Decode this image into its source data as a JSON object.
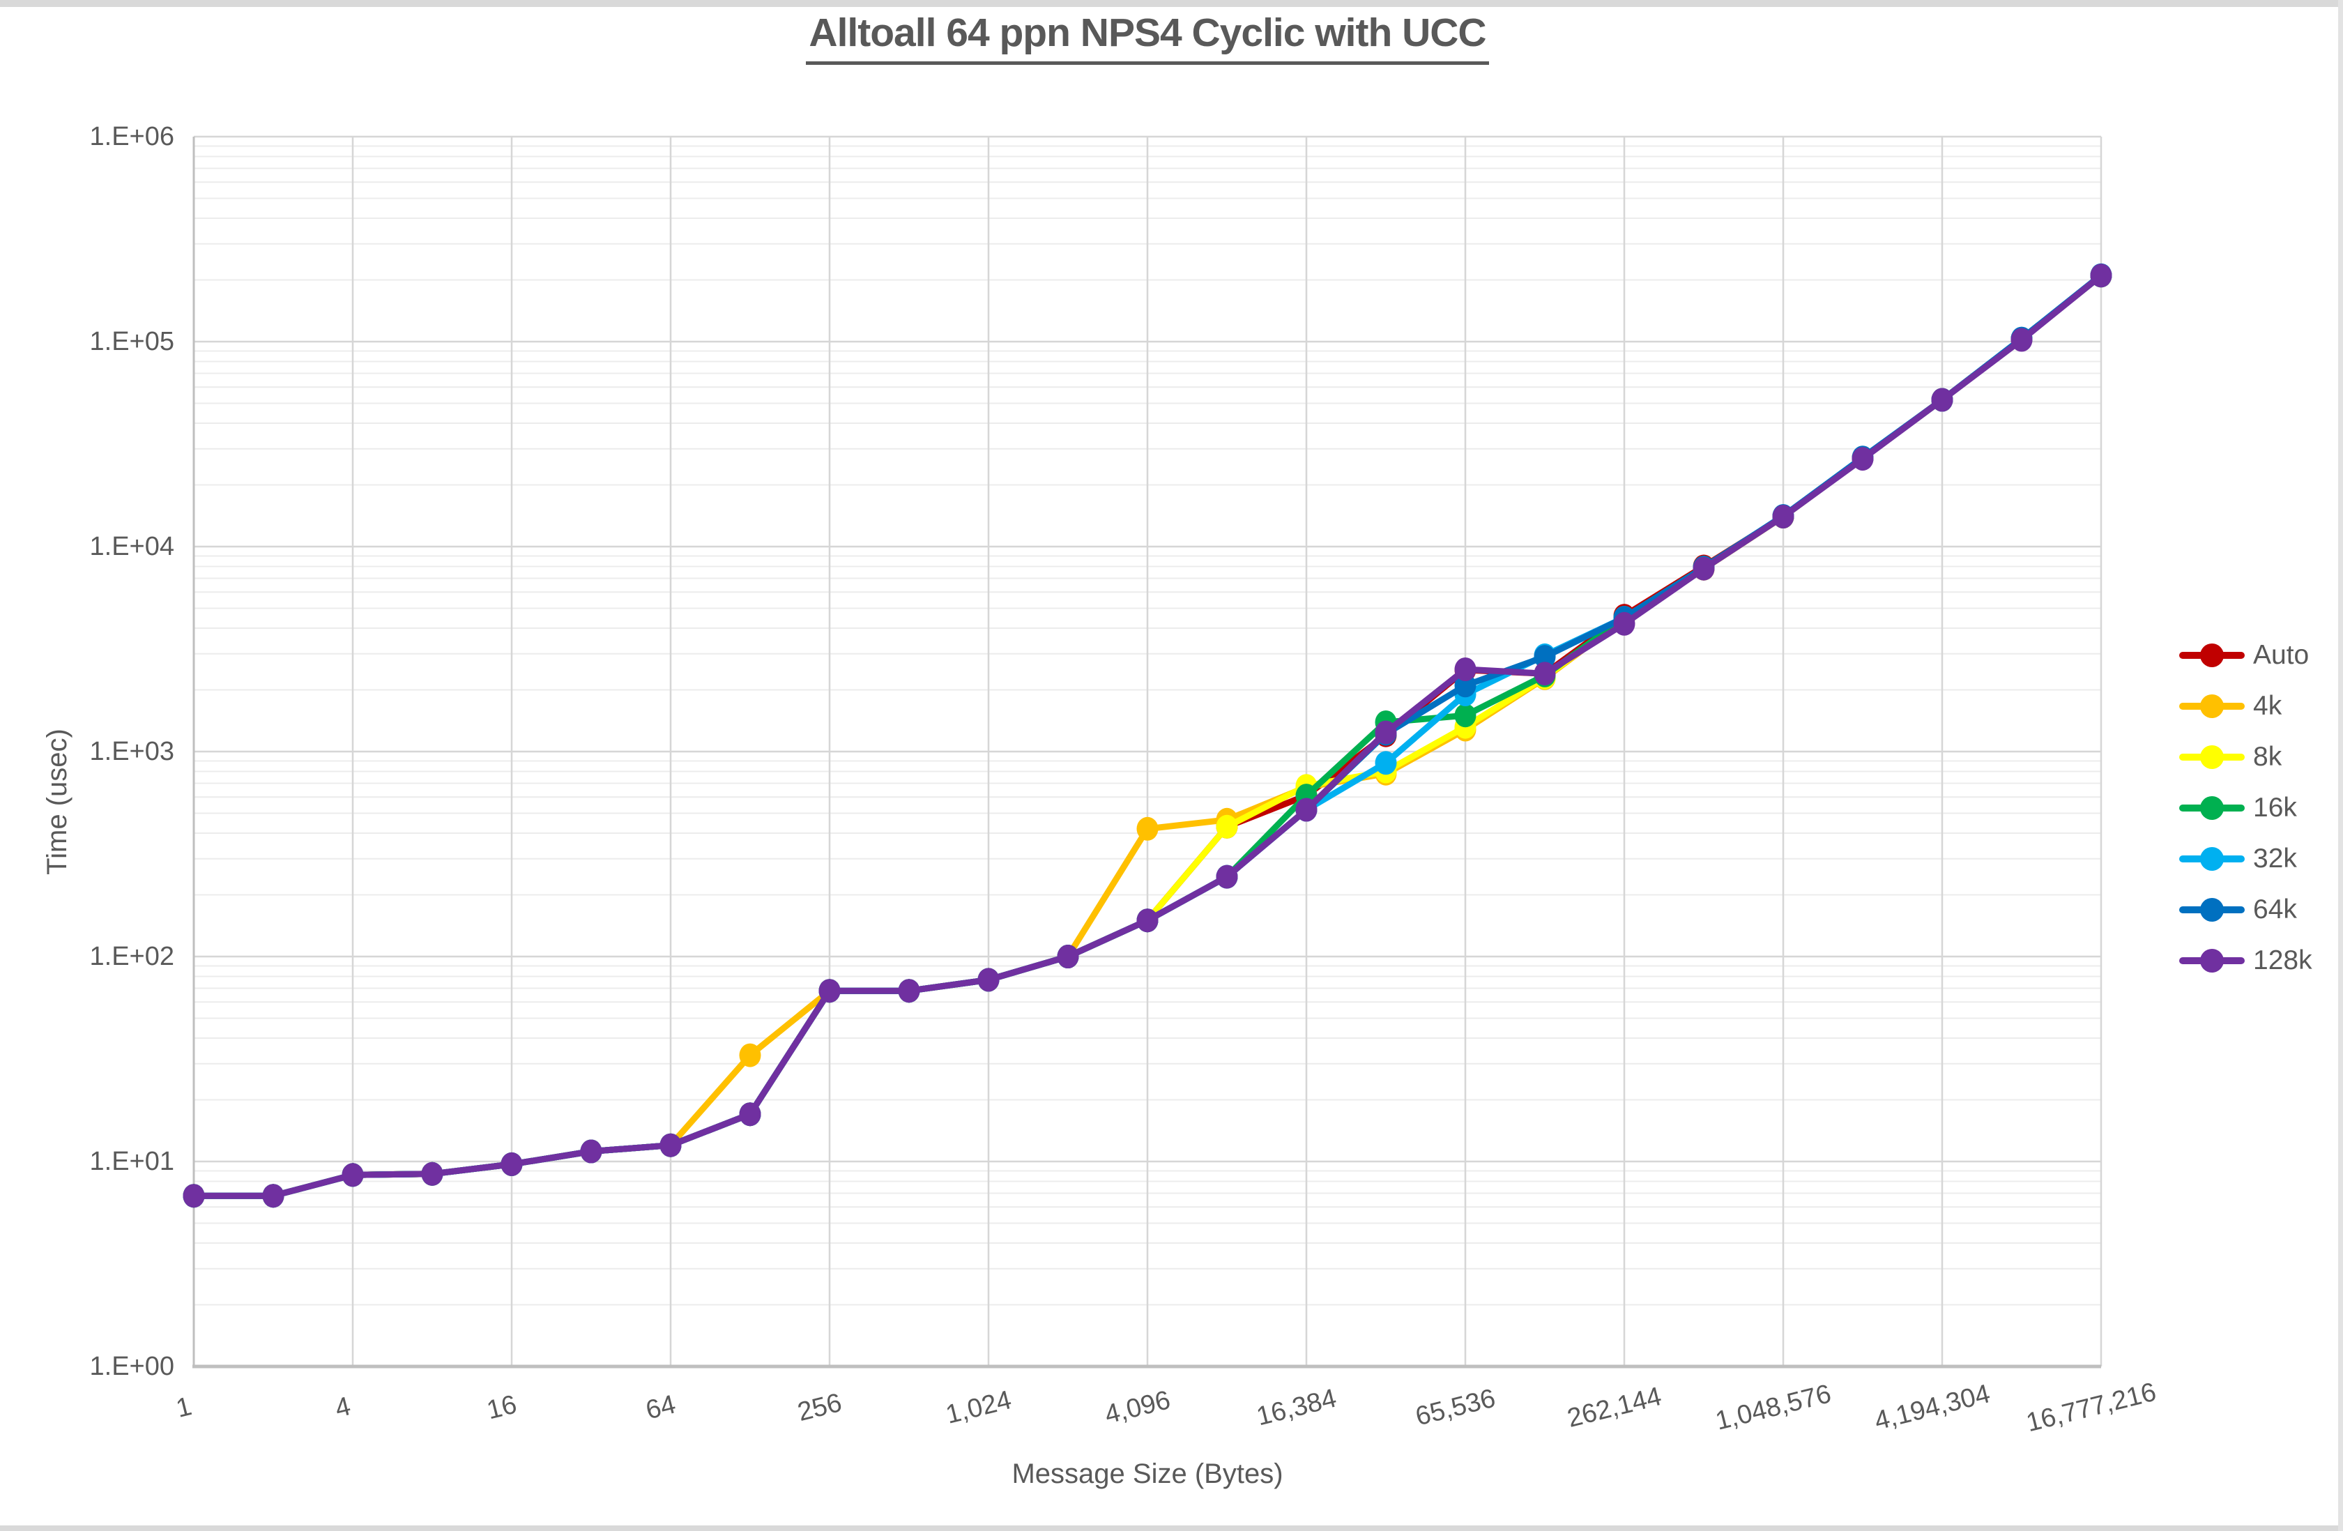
{
  "chart": {
    "text_color": "#595959",
    "major_gridline_color": "#d6d6d6",
    "minor_gridline_color": "#ececec",
    "axis_line_color": "#bfbfbf",
    "background_color": "#ffffff"
  },
  "chart_data": {
    "type": "line",
    "title": "Alltoall 64 ppn NPS4 Cyclic with UCC",
    "xlabel": "Message Size (Bytes)",
    "ylabel": "Time (usec)",
    "x_scale": "log2",
    "y_scale": "log10",
    "xlim": [
      1,
      16777216
    ],
    "ylim": [
      1,
      1000000
    ],
    "grid": true,
    "legend_position": "right",
    "x": [
      1,
      2,
      4,
      8,
      16,
      32,
      64,
      128,
      256,
      512,
      1024,
      2048,
      4096,
      8192,
      16384,
      32768,
      65536,
      131072,
      262144,
      524288,
      1048576,
      2097152,
      4194304,
      8388608,
      16777216
    ],
    "x_tick_labels": [
      "1",
      "4",
      "16",
      "64",
      "256",
      "1,024",
      "4,096",
      "16,384",
      "65,536",
      "262,144",
      "1,048,576",
      "4,194,304",
      "16,777,216"
    ],
    "y_tick_labels": [
      "1.E+00",
      "1.E+01",
      "1.E+02",
      "1.E+03",
      "1.E+04",
      "1.E+05",
      "1.E+06"
    ],
    "series": [
      {
        "name": "Auto",
        "color": "#C00000",
        "values": [
          6.8,
          6.8,
          8.6,
          8.7,
          9.7,
          11.2,
          12,
          17,
          68,
          68,
          77,
          100,
          150,
          430,
          610,
          1200,
          2500,
          2400,
          4600,
          8000,
          14000,
          27000,
          52000,
          103000,
          210000
        ]
      },
      {
        "name": "4k",
        "color": "#FFC000",
        "values": [
          6.8,
          6.8,
          8.6,
          8.7,
          9.7,
          11.2,
          12,
          33,
          68,
          68,
          77,
          100,
          420,
          465,
          670,
          780,
          1280,
          2280,
          4450,
          7800,
          14000,
          27000,
          52000,
          103000,
          210000
        ]
      },
      {
        "name": "8k",
        "color": "#FFFF00",
        "values": [
          6.8,
          6.8,
          8.6,
          8.7,
          9.7,
          11.2,
          12,
          17,
          68,
          68,
          77,
          100,
          150,
          430,
          680,
          800,
          1320,
          2300,
          4500,
          7800,
          14000,
          27000,
          52000,
          103000,
          210000
        ]
      },
      {
        "name": "16k",
        "color": "#00B050",
        "values": [
          6.8,
          6.8,
          8.6,
          8.7,
          9.7,
          11.2,
          12,
          17,
          68,
          68,
          77,
          100,
          150,
          245,
          610,
          1390,
          1500,
          2350,
          4500,
          7900,
          14000,
          27000,
          52000,
          103000,
          210000
        ]
      },
      {
        "name": "32k",
        "color": "#00B0F0",
        "values": [
          6.8,
          6.8,
          8.6,
          8.7,
          9.7,
          11.2,
          12,
          17,
          68,
          68,
          77,
          100,
          150,
          245,
          520,
          880,
          1900,
          2950,
          4500,
          7900,
          14100,
          27000,
          52000,
          103000,
          210000
        ]
      },
      {
        "name": "64k",
        "color": "#0070C0",
        "values": [
          6.8,
          6.8,
          8.6,
          8.7,
          9.7,
          11.2,
          12,
          17,
          68,
          68,
          77,
          100,
          150,
          245,
          520,
          1220,
          2100,
          2900,
          4500,
          7900,
          14100,
          27200,
          52000,
          103500,
          211000
        ]
      },
      {
        "name": "128k",
        "color": "#7030A0",
        "values": [
          6.8,
          6.8,
          8.6,
          8.7,
          9.7,
          11.2,
          12,
          17,
          68,
          68,
          77,
          100,
          150,
          245,
          520,
          1240,
          2520,
          2400,
          4200,
          7800,
          14000,
          26800,
          52000,
          102000,
          210000
        ]
      }
    ]
  }
}
